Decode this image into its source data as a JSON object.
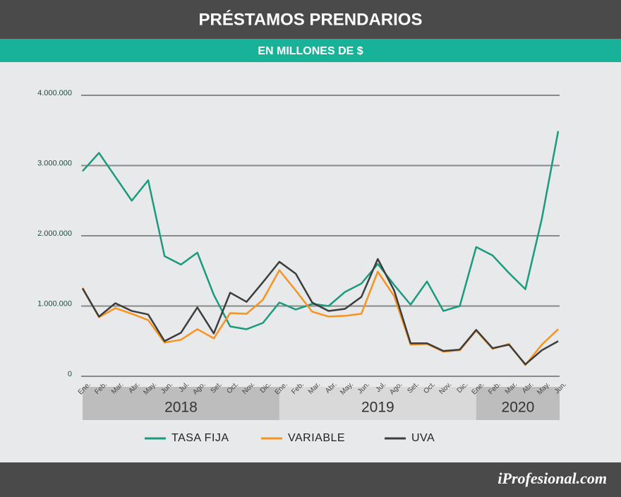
{
  "chart_data": {
    "type": "line",
    "title": "PRÉSTAMOS PRENDARIOS",
    "subtitle": "EN MILLONES DE $",
    "source": "iProfesional.com",
    "categories": [
      "Ene.",
      "Feb.",
      "Mar.",
      "Abr.",
      "May.",
      "Jun.",
      "Jul.",
      "Ago.",
      "Set.",
      "Oct.",
      "Nov.",
      "Dic.",
      "Ene.",
      "Feb.",
      "Mar.",
      "Abr.",
      "May.",
      "Jun.",
      "Jul.",
      "Ago.",
      "Set.",
      "Oct.",
      "Nov.",
      "Dic.",
      "Ene.",
      "Feb.",
      "Mar.",
      "Abr.",
      "May.",
      "Jun."
    ],
    "x_groups": [
      "2018",
      "2019",
      "2020"
    ],
    "series": [
      {
        "name": "TASA FIJA",
        "color": "#1a9a7e",
        "values": [
          2920000,
          3180000,
          2840000,
          2500000,
          2790000,
          1710000,
          1590000,
          1760000,
          1160000,
          710000,
          670000,
          760000,
          1050000,
          950000,
          1030000,
          1000000,
          1200000,
          1320000,
          1600000,
          1300000,
          1020000,
          1350000,
          930000,
          1000000,
          1840000,
          1720000,
          1470000,
          1240000,
          2240000,
          3490000
        ]
      },
      {
        "name": "VARIABLE",
        "color": "#f7931e",
        "values": [
          1260000,
          840000,
          970000,
          890000,
          800000,
          480000,
          520000,
          670000,
          540000,
          900000,
          890000,
          1090000,
          1510000,
          1220000,
          920000,
          850000,
          860000,
          890000,
          1490000,
          1140000,
          450000,
          460000,
          350000,
          370000,
          650000,
          390000,
          460000,
          160000,
          450000,
          670000
        ]
      },
      {
        "name": "UVA",
        "color": "#3d3d3d",
        "values": [
          1250000,
          850000,
          1040000,
          930000,
          880000,
          500000,
          620000,
          980000,
          610000,
          1190000,
          1060000,
          1340000,
          1630000,
          1460000,
          1050000,
          930000,
          960000,
          1130000,
          1670000,
          1220000,
          470000,
          470000,
          360000,
          380000,
          660000,
          400000,
          450000,
          170000,
          370000,
          500000
        ]
      }
    ],
    "ylim": [
      0,
      4000000
    ],
    "yticks": [
      0,
      {
        "value": 1000000,
        "label": "1.000.000"
      },
      {
        "value": 2000000,
        "label": "2.000.000"
      },
      {
        "value": 3000000,
        "label": "3.000.000"
      },
      {
        "value": 4000000,
        "label": "4.000.000"
      }
    ],
    "grid": true
  }
}
